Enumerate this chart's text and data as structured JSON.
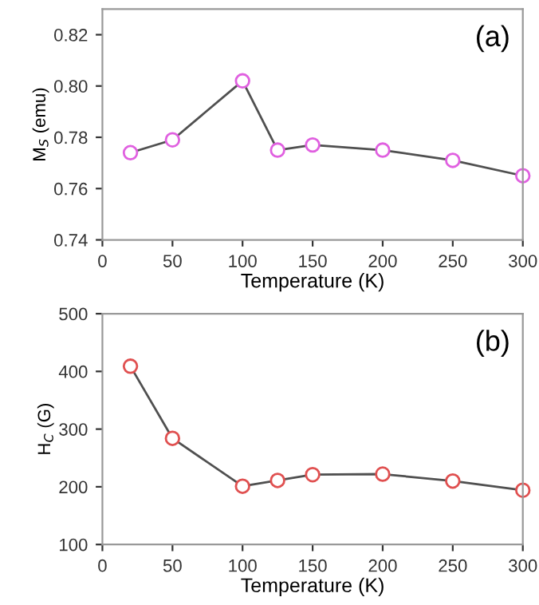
{
  "chart_data": [
    {
      "type": "line",
      "xlabel": "Temperature (K)",
      "ylabel": "M$_{S}$ (emu)",
      "annotations": [
        "(a)"
      ],
      "x": [
        20,
        50,
        100,
        125,
        150,
        200,
        250,
        300
      ],
      "series": [
        {
          "color": "#e060e0",
          "values": [
            0.774,
            0.779,
            0.802,
            0.775,
            0.777,
            0.775,
            0.771,
            0.765
          ]
        }
      ],
      "xlim": [
        0,
        300
      ],
      "ylim": [
        0.74,
        0.83
      ],
      "xticks": [
        0,
        50,
        100,
        150,
        200,
        250,
        300
      ],
      "yticks": [
        0.74,
        0.76,
        0.78,
        {
          "value": 0.8,
          "label": "0.80"
        },
        0.82
      ],
      "marker": "circle",
      "grid": false,
      "legend": false
    },
    {
      "type": "line",
      "xlabel": "Temperature (K)",
      "ylabel": "H$_{C}$ (G)",
      "annotations": [
        "(b)"
      ],
      "x": [
        20,
        50,
        100,
        125,
        150,
        200,
        250,
        300
      ],
      "series": [
        {
          "color": "#e05050",
          "values": [
            409,
            284,
            201,
            211,
            221,
            222,
            210,
            194
          ]
        }
      ],
      "xlim": [
        0,
        300
      ],
      "ylim": [
        100,
        500
      ],
      "xticks": [
        0,
        50,
        100,
        150,
        200,
        250,
        300
      ],
      "yticks": [
        100,
        200,
        300,
        400,
        500
      ],
      "marker": "circle",
      "grid": false,
      "legend": false
    }
  ]
}
